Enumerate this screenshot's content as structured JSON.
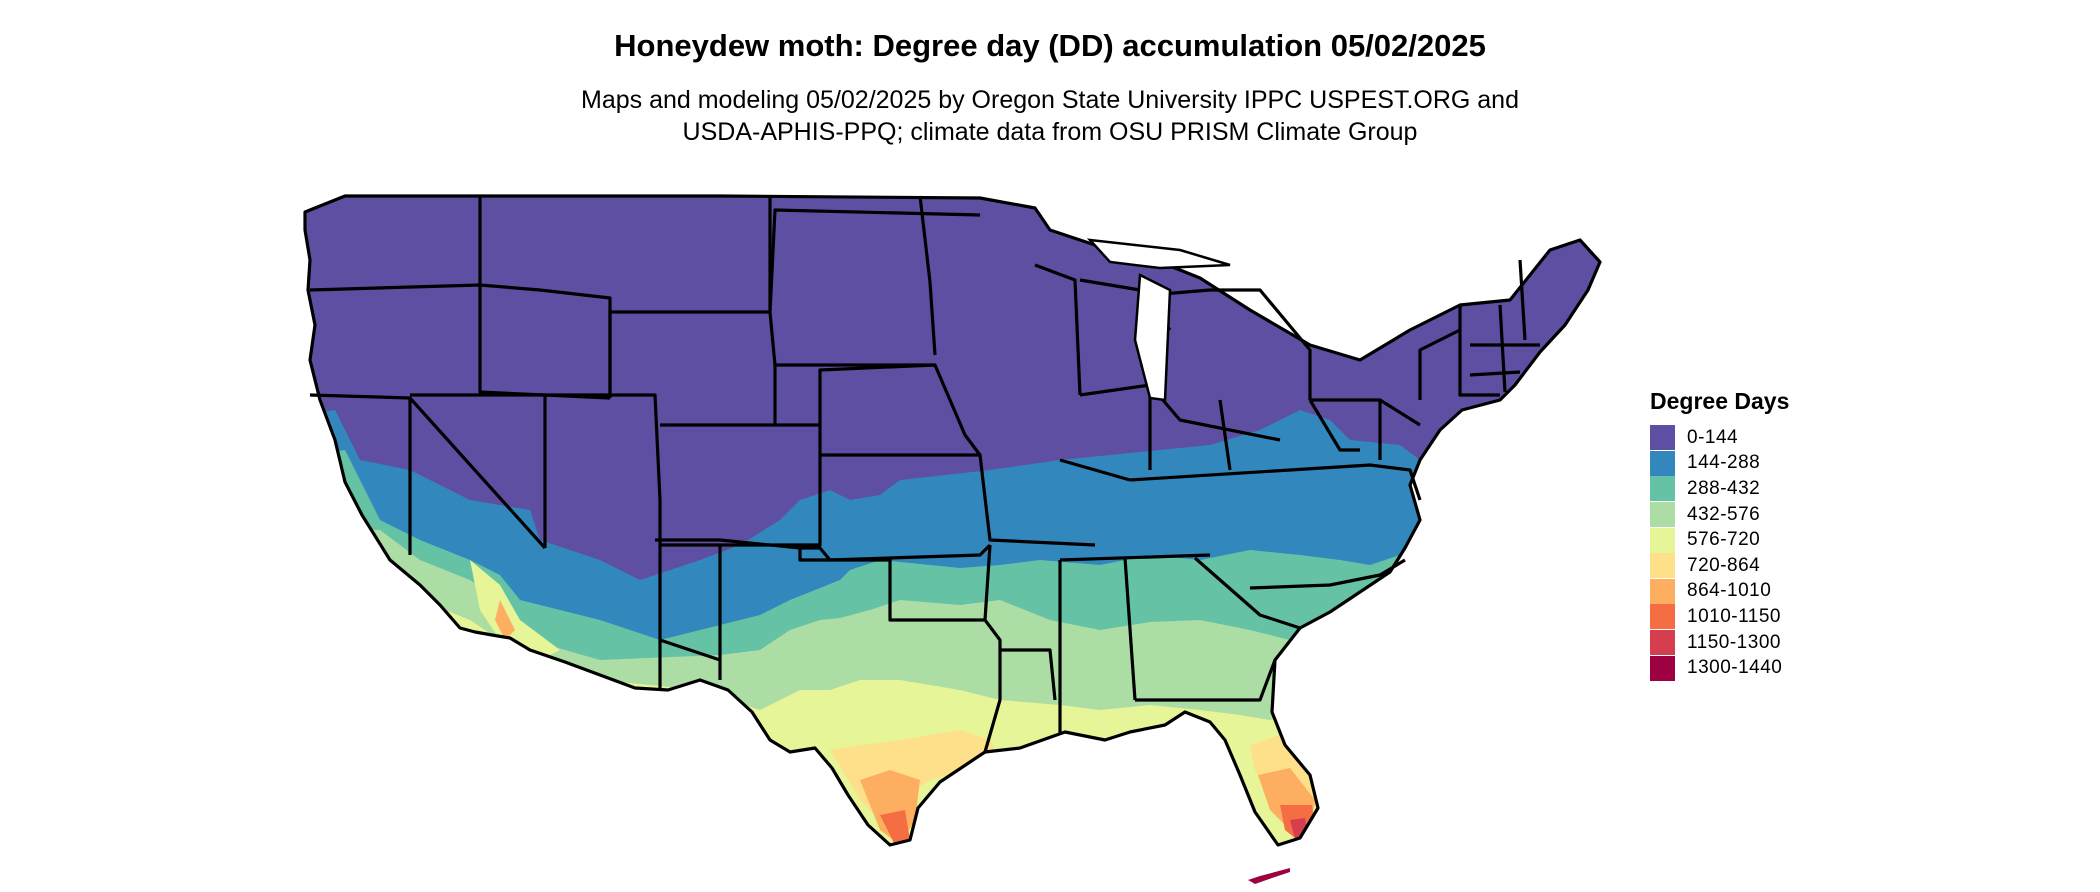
{
  "title": "Honeydew moth: Degree day (DD) accumulation 05/02/2025",
  "subtitle_line1": "Maps and modeling 05/02/2025 by Oregon State University IPPC USPEST.ORG and",
  "subtitle_line2": "USDA-APHIS-PPQ; climate data from OSU PRISM Climate Group",
  "legend": {
    "title": "Degree Days",
    "items": [
      {
        "label": "0-144",
        "color": "#5e4fa2"
      },
      {
        "label": "144-288",
        "color": "#3288bd"
      },
      {
        "label": "288-432",
        "color": "#66c2a5"
      },
      {
        "label": "432-576",
        "color": "#abdda4"
      },
      {
        "label": "576-720",
        "color": "#e6f598"
      },
      {
        "label": "720-864",
        "color": "#fee08b"
      },
      {
        "label": "864-1010",
        "color": "#fdae61"
      },
      {
        "label": "1010-1150",
        "color": "#f46d43"
      },
      {
        "label": "1150-1300",
        "color": "#d53e4f"
      },
      {
        "label": "1300-1440",
        "color": "#9e0142"
      }
    ]
  }
}
